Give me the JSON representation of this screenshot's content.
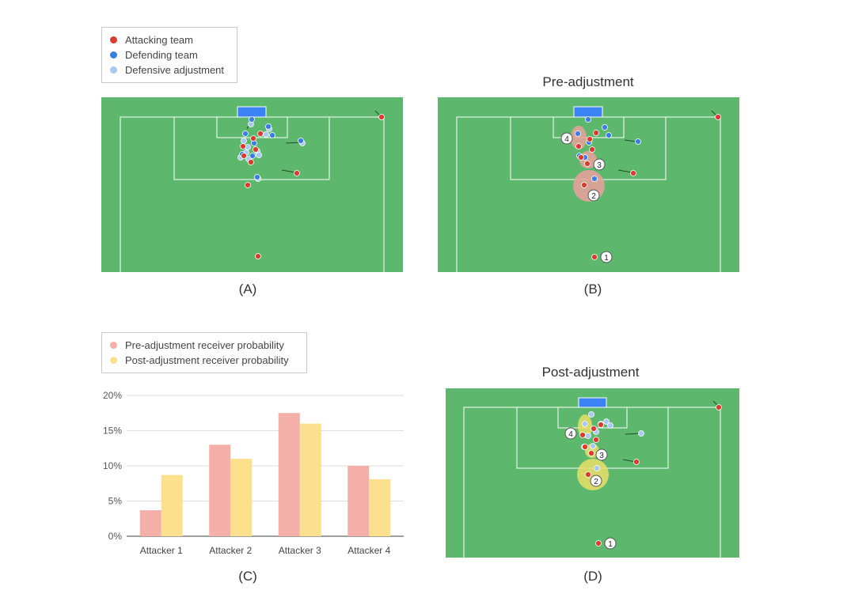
{
  "colors": {
    "attacking": "#d93b30",
    "defending": "#3b7de8",
    "adjustment": "#a9c7f2",
    "pitch": "#5db86e",
    "goal": "#3b82f6",
    "pre_bar": "#f4b0a8",
    "post_bar": "#fde08d"
  },
  "legend_top": {
    "items": [
      {
        "label": "Attacking team",
        "color": "#d93b30"
      },
      {
        "label": "Defending team",
        "color": "#3b7de8"
      },
      {
        "label": "Defensive adjustment",
        "color": "#a9c7f2"
      }
    ]
  },
  "legend_bottom": {
    "items": [
      {
        "label": "Pre-adjustment receiver probability",
        "color": "#f4b0a8"
      },
      {
        "label": "Post-adjustment receiver probability",
        "color": "#fde08d"
      }
    ]
  },
  "panels": {
    "a": {
      "label": "(A)"
    },
    "b": {
      "label": "(B)",
      "title": "Pre-adjustment"
    },
    "c": {
      "label": "(C)"
    },
    "d": {
      "label": "(D)",
      "title": "Post-adjustment"
    }
  },
  "markers": [
    "1",
    "2",
    "3",
    "4"
  ],
  "chart_data": {
    "type": "bar",
    "categories": [
      "Attacker 1",
      "Attacker 2",
      "Attacker 3",
      "Attacker 4"
    ],
    "series": [
      {
        "name": "Pre-adjustment receiver probability",
        "values": [
          3.7,
          13.0,
          17.5,
          10.0
        ],
        "color": "#f4b0a8"
      },
      {
        "name": "Post-adjustment receiver probability",
        "values": [
          8.7,
          11.0,
          16.0,
          8.1
        ],
        "color": "#fde08d"
      }
    ],
    "ylim": [
      0,
      20
    ],
    "yticks": [
      "0%",
      "5%",
      "10%",
      "15%",
      "20%"
    ],
    "grid": true,
    "legend": "top-left"
  }
}
